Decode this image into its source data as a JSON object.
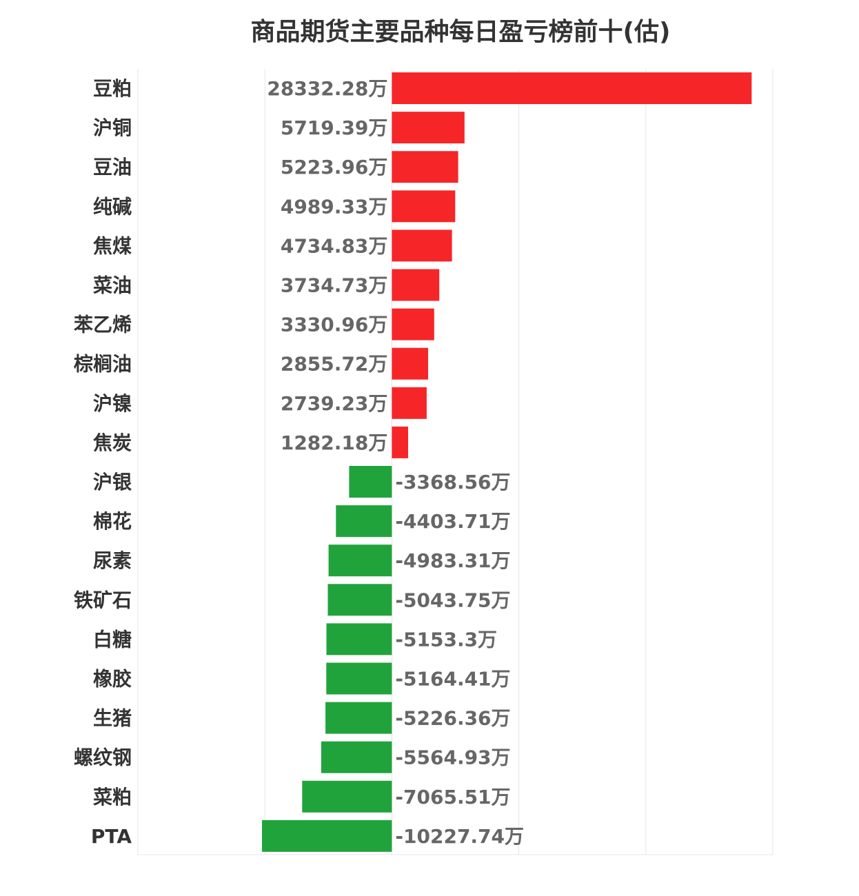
{
  "chart_data": {
    "type": "bar",
    "orientation": "horizontal",
    "title": "商品期货主要品种每日盈亏榜前十(估)",
    "categories": [
      "豆粕",
      "沪铜",
      "豆油",
      "纯碱",
      "焦煤",
      "菜油",
      "苯乙烯",
      "棕榈油",
      "沪镍",
      "焦炭",
      "沪银",
      "棉花",
      "尿素",
      "铁矿石",
      "白糖",
      "橡胶",
      "生猪",
      "螺纹钢",
      "菜粕",
      "PTA"
    ],
    "values": [
      28332.28,
      5719.39,
      5223.96,
      4989.33,
      4734.83,
      3734.73,
      3330.96,
      2855.72,
      2739.23,
      1282.18,
      -3368.56,
      -4403.71,
      -4983.31,
      -5043.75,
      -5153.3,
      -5164.41,
      -5226.36,
      -5564.93,
      -7065.51,
      -10227.74
    ],
    "value_labels": [
      "28332.28万",
      "5719.39万",
      "5223.96万",
      "4989.33万",
      "4734.83万",
      "3734.73万",
      "3330.96万",
      "2855.72万",
      "2739.23万",
      "1282.18万",
      "-3368.56万",
      "-4403.71万",
      "-4983.31万",
      "-5043.75万",
      "-5153.3万",
      "-5164.41万",
      "-5226.36万",
      "-5564.93万",
      "-7065.51万",
      "-10227.74万"
    ],
    "xlim": [
      -20000,
      30000
    ],
    "grid_x": [
      -10000,
      0,
      10000,
      20000
    ],
    "grid": true,
    "legend": "none",
    "colors": {
      "positive": "#f62628",
      "negative": "#21a33c",
      "grid": "#e6e6e6",
      "title": "#333333",
      "category_text": "#333333",
      "value_text": "#666666"
    }
  }
}
